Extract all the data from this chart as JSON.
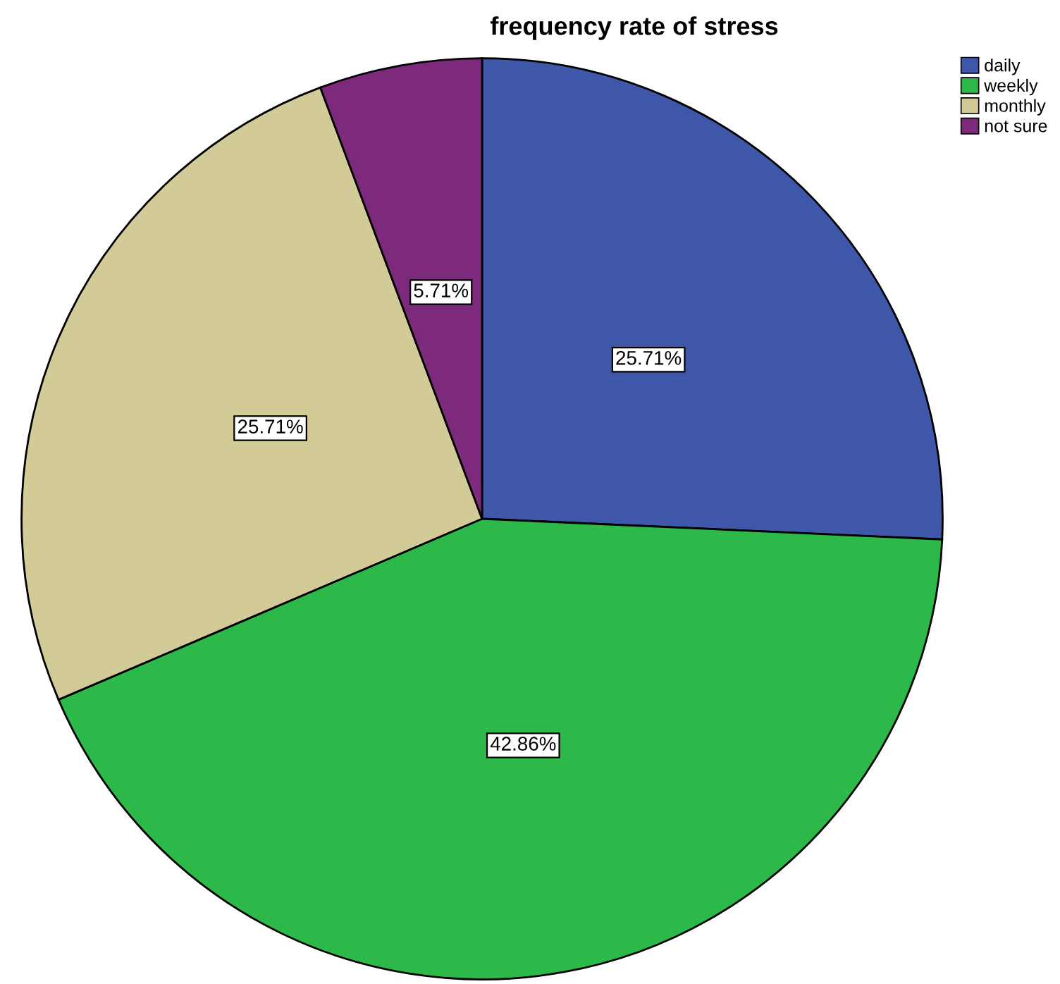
{
  "chart_data": {
    "type": "pie",
    "title": "frequency rate of stress",
    "categories": [
      "daily",
      "weekly",
      "monthly",
      "not sure"
    ],
    "values": [
      25.71,
      42.86,
      25.71,
      5.71
    ],
    "colors": [
      "#3f57a8",
      "#2db84a",
      "#d3cb97",
      "#7e2a7c"
    ],
    "value_labels": [
      "25.71%",
      "42.86%",
      "25.71%",
      "5.71%"
    ],
    "legend": "top right"
  }
}
